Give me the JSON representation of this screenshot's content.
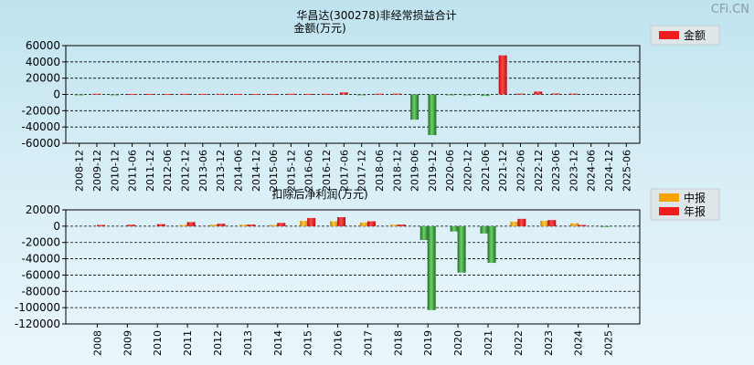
{
  "watermark": "CFi.CN",
  "colors": {
    "red": "#ee1c1c",
    "red_dark": "#b80f0f",
    "green": "#2f8a2f",
    "green_light": "#5fbf5f",
    "orange": "#f5a300",
    "orange_dark": "#c98400"
  },
  "chart_data": [
    {
      "type": "bar",
      "title": "华昌达(300278)非经常损益合计",
      "ylabel": "金额(万元)",
      "ylim": [
        -60000,
        60000
      ],
      "yticks": [
        60000,
        40000,
        20000,
        0,
        -20000,
        -40000,
        -60000
      ],
      "grid": true,
      "legend": {
        "placement": "top-right",
        "entries": [
          "金额"
        ]
      },
      "categories": [
        "2008-12",
        "2009-12",
        "2010-12",
        "2011-06",
        "2011-12",
        "2012-06",
        "2012-12",
        "2013-06",
        "2013-12",
        "2014-06",
        "2014-12",
        "2015-06",
        "2015-12",
        "2016-06",
        "2016-12",
        "2017-06",
        "2017-12",
        "2018-06",
        "2018-12",
        "2019-06",
        "2019-12",
        "2020-06",
        "2020-12",
        "2021-06",
        "2021-12",
        "2022-06",
        "2022-12",
        "2023-06",
        "2023-12",
        "2024-06",
        "2024-12",
        "2025-06"
      ],
      "series": [
        {
          "name": "金额",
          "values": [
            -400,
            800,
            -300,
            500,
            600,
            500,
            700,
            600,
            700,
            600,
            500,
            500,
            800,
            600,
            700,
            2500,
            -200,
            900,
            1000,
            -31000,
            -50000,
            -500,
            -1200,
            -1800,
            48000,
            1000,
            3500,
            1200,
            1000,
            0,
            0,
            0
          ]
        }
      ]
    },
    {
      "type": "bar",
      "title": "扣除后净利润(万元)",
      "ylim": [
        -120000,
        20000
      ],
      "yticks": [
        20000,
        0,
        -20000,
        -40000,
        -60000,
        -80000,
        -100000,
        -120000
      ],
      "grid": true,
      "legend": {
        "placement": "top-right",
        "entries": [
          "中报",
          "年报"
        ]
      },
      "categories": [
        "2008",
        "2009",
        "2010",
        "2011",
        "2012",
        "2013",
        "2014",
        "2015",
        "2016",
        "2017",
        "2018",
        "2019",
        "2020",
        "2021",
        "2022",
        "2023",
        "2024",
        "2025"
      ],
      "series": [
        {
          "name": "中报",
          "values": [
            null,
            null,
            null,
            1500,
            1800,
            1700,
            1500,
            6500,
            6000,
            4500,
            1800,
            -17000,
            -6500,
            -9000,
            5500,
            6500,
            3500,
            -1000
          ]
        },
        {
          "name": "年报",
          "values": [
            1500,
            1800,
            2500,
            5000,
            3000,
            2000,
            4000,
            10000,
            11000,
            6000,
            2000,
            -103000,
            -57000,
            -45000,
            9000,
            7500,
            1500,
            null
          ]
        }
      ]
    }
  ]
}
